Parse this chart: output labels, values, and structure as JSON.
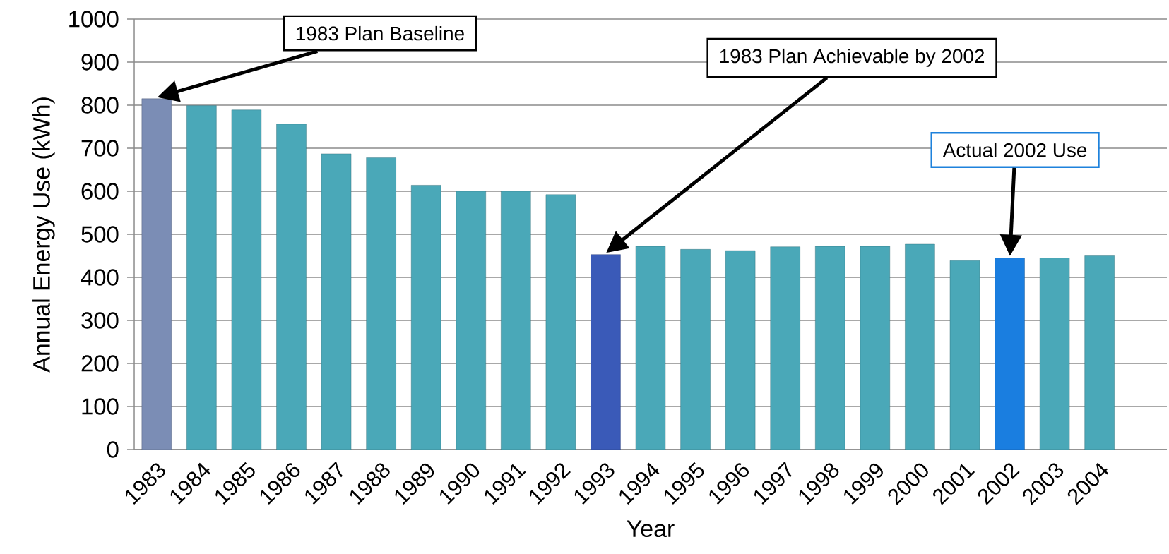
{
  "chart_data": {
    "type": "bar",
    "xlabel": "Year",
    "ylabel": "Annual Energy Use (kWh)",
    "categories": [
      "1983",
      "1984",
      "1985",
      "1986",
      "1987",
      "1988",
      "1989",
      "1990",
      "1991",
      "1992",
      "1993",
      "1994",
      "1995",
      "1996",
      "1997",
      "1998",
      "1999",
      "2000",
      "2001",
      "2002",
      "2003",
      "2004",
      null
    ],
    "values": [
      815,
      799,
      789,
      756,
      687,
      678,
      614,
      600,
      600,
      592,
      453,
      472,
      465,
      462,
      471,
      472,
      472,
      477,
      439,
      445,
      445,
      450,
      null
    ],
    "colors": [
      "#7b8db5",
      "#4aa8b8",
      "#4aa8b8",
      "#4aa8b8",
      "#4aa8b8",
      "#4aa8b8",
      "#4aa8b8",
      "#4aa8b8",
      "#4aa8b8",
      "#4aa8b8",
      "#3a5ab8",
      "#4aa8b8",
      "#4aa8b8",
      "#4aa8b8",
      "#4aa8b8",
      "#4aa8b8",
      "#4aa8b8",
      "#4aa8b8",
      "#4aa8b8",
      "#1a7ee0",
      "#4aa8b8",
      "#4aa8b8",
      null
    ],
    "ylim": [
      0,
      1000
    ],
    "yticks": [
      0,
      100,
      200,
      300,
      400,
      500,
      600,
      700,
      800,
      900,
      1000
    ],
    "grid": "y",
    "annotations": [
      "1983 Plan Baseline",
      "1983 Plan Achievable by 2002",
      "Actual 2002 Use"
    ]
  }
}
